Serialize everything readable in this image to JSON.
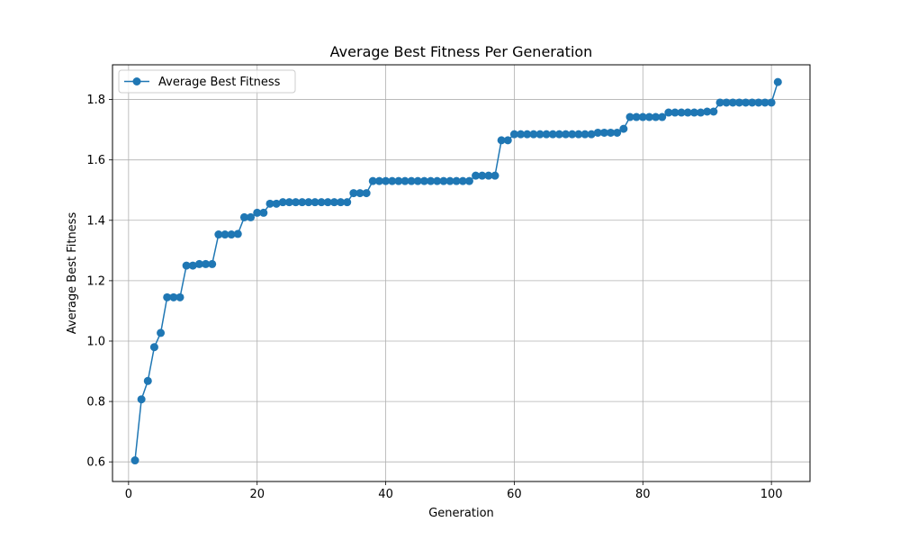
{
  "chart_data": {
    "type": "line",
    "title": "Average Best Fitness Per Generation",
    "xlabel": "Generation",
    "ylabel": "Average Best Fitness",
    "xlim": [
      -2.5,
      106
    ],
    "ylim": [
      0.535,
      1.915
    ],
    "xticks": [
      0,
      20,
      40,
      60,
      80,
      100
    ],
    "yticks": [
      0.6,
      0.8,
      1.0,
      1.2,
      1.4,
      1.6,
      1.8
    ],
    "ytick_labels": [
      "0.6",
      "0.8",
      "1.0",
      "1.2",
      "1.4",
      "1.6",
      "1.8"
    ],
    "grid": true,
    "legend_placement": "upper-left",
    "series": [
      {
        "name": "Average Best Fitness",
        "color": "#1f77b4",
        "marker": "circle",
        "x": [
          1,
          2,
          3,
          4,
          5,
          6,
          7,
          8,
          9,
          10,
          11,
          12,
          13,
          14,
          15,
          16,
          17,
          18,
          19,
          20,
          21,
          22,
          23,
          24,
          25,
          26,
          27,
          28,
          29,
          30,
          31,
          32,
          33,
          34,
          35,
          36,
          37,
          38,
          39,
          40,
          41,
          42,
          43,
          44,
          45,
          46,
          47,
          48,
          49,
          50,
          51,
          52,
          53,
          54,
          55,
          56,
          57,
          58,
          59,
          60,
          61,
          62,
          63,
          64,
          65,
          66,
          67,
          68,
          69,
          70,
          71,
          72,
          73,
          74,
          75,
          76,
          77,
          78,
          79,
          80,
          81,
          82,
          83,
          84,
          85,
          86,
          87,
          88,
          89,
          90,
          91,
          92,
          93,
          94,
          95,
          96,
          97,
          98,
          99,
          100,
          101
        ],
        "y": [
          0.605,
          0.807,
          0.868,
          0.98,
          1.027,
          1.145,
          1.145,
          1.145,
          1.25,
          1.25,
          1.255,
          1.255,
          1.255,
          1.353,
          1.353,
          1.353,
          1.355,
          1.41,
          1.41,
          1.425,
          1.425,
          1.455,
          1.455,
          1.46,
          1.46,
          1.46,
          1.46,
          1.46,
          1.46,
          1.46,
          1.46,
          1.46,
          1.46,
          1.46,
          1.49,
          1.49,
          1.49,
          1.53,
          1.53,
          1.53,
          1.53,
          1.53,
          1.53,
          1.53,
          1.53,
          1.53,
          1.53,
          1.53,
          1.53,
          1.53,
          1.53,
          1.53,
          1.53,
          1.548,
          1.548,
          1.548,
          1.548,
          1.665,
          1.665,
          1.685,
          1.685,
          1.685,
          1.685,
          1.685,
          1.685,
          1.685,
          1.685,
          1.685,
          1.685,
          1.685,
          1.685,
          1.685,
          1.69,
          1.69,
          1.69,
          1.69,
          1.703,
          1.742,
          1.742,
          1.742,
          1.742,
          1.742,
          1.742,
          1.757,
          1.757,
          1.757,
          1.757,
          1.757,
          1.757,
          1.76,
          1.76,
          1.79,
          1.79,
          1.79,
          1.79,
          1.79,
          1.79,
          1.79,
          1.79,
          1.79,
          1.858
        ]
      }
    ]
  }
}
